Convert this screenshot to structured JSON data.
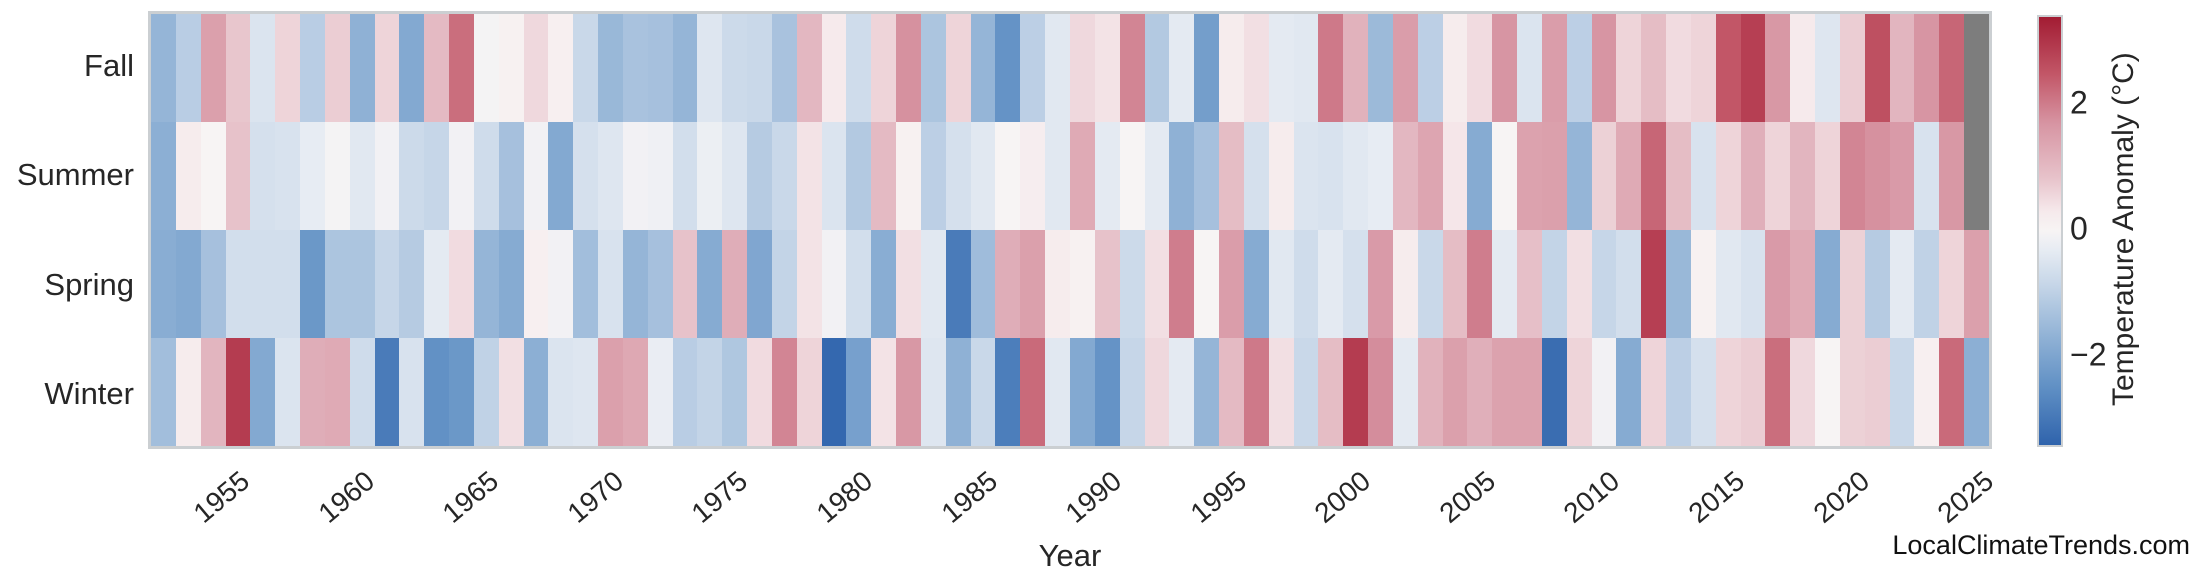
{
  "watermark": "LocalClimateTrends.com",
  "chart_data": {
    "type": "heatmap",
    "title": "",
    "xlabel": "Year",
    "ylabel": "",
    "rows": [
      "Fall",
      "Summer",
      "Spring",
      "Winter"
    ],
    "year_start": 1952,
    "year_end": 2025,
    "x_ticks": [
      "1955",
      "1960",
      "1965",
      "1970",
      "1975",
      "1980",
      "1985",
      "1990",
      "1995",
      "2000",
      "2005",
      "2010",
      "2015",
      "2020",
      "2025"
    ],
    "grid": false,
    "legend_position": "right-colorbar",
    "colorbar": {
      "label": "Temperature Anomaly (°C)",
      "ticks": [
        {
          "label": "2",
          "value": 2
        },
        {
          "label": "0",
          "value": 0
        },
        {
          "label": "−2",
          "value": -2
        }
      ],
      "vmin": -3.4,
      "vmax": 3.4
    },
    "missing_value_color": "#7d7d7d",
    "colormap_stops": [
      [
        -3.4,
        "#2f63ac"
      ],
      [
        -2.5,
        "#5f8fc4"
      ],
      [
        -1.7,
        "#8fb1d5"
      ],
      [
        -0.85,
        "#c6d6e8"
      ],
      [
        -0.3,
        "#e7ecf3"
      ],
      [
        0.0,
        "#f7f4f4"
      ],
      [
        0.3,
        "#f6eaec"
      ],
      [
        0.85,
        "#e7c2ca"
      ],
      [
        1.7,
        "#d795a3"
      ],
      [
        2.5,
        "#c25667"
      ],
      [
        3.4,
        "#a21c33"
      ]
    ],
    "series": [
      {
        "name": "Fall",
        "values": [
          -1.6,
          -1.05,
          1.5,
          0.8,
          -0.5,
          0.6,
          -1.05,
          0.7,
          -1.7,
          0.6,
          -1.9,
          1.0,
          2.2,
          -0.05,
          0.1,
          0.55,
          0.15,
          -0.8,
          -1.55,
          -1.3,
          -1.35,
          -1.6,
          -0.45,
          -0.75,
          -0.8,
          -1.3,
          1.05,
          0.3,
          -0.7,
          0.6,
          1.75,
          -1.25,
          0.6,
          -1.6,
          -2.4,
          -1.0,
          -0.4,
          0.55,
          0.4,
          1.9,
          -1.15,
          -0.35,
          -2.15,
          0.25,
          0.45,
          -0.35,
          -0.4,
          2.05,
          1.15,
          -1.5,
          1.55,
          -1.0,
          0.25,
          0.5,
          1.7,
          -0.5,
          1.55,
          -1.0,
          1.7,
          0.6,
          0.95,
          0.5,
          0.6,
          2.5,
          2.85,
          1.65,
          0.3,
          -0.45,
          0.7,
          2.6,
          1.1,
          1.7,
          2.3,
          null
        ]
      },
      {
        "name": "Summer",
        "values": [
          -1.75,
          0.25,
          0.0,
          0.85,
          -0.6,
          -0.55,
          -0.3,
          -0.05,
          -0.4,
          -0.1,
          -0.75,
          -0.85,
          -0.1,
          -0.7,
          -1.35,
          -0.1,
          -1.9,
          -0.6,
          -0.45,
          -0.1,
          -0.15,
          -0.65,
          -0.2,
          -0.45,
          -1.1,
          -0.8,
          0.4,
          -0.5,
          -1.15,
          1.0,
          0.1,
          -1.0,
          -0.6,
          -0.4,
          0.0,
          0.2,
          -0.4,
          1.3,
          -0.35,
          0.0,
          -0.35,
          -1.7,
          -1.35,
          0.95,
          -0.6,
          0.25,
          -0.5,
          -0.55,
          -0.4,
          -0.3,
          1.05,
          1.4,
          0.35,
          -1.85,
          0.0,
          1.45,
          1.5,
          -1.6,
          0.65,
          1.3,
          2.3,
          0.95,
          -0.55,
          0.6,
          1.2,
          0.6,
          1.1,
          0.6,
          1.9,
          1.75,
          1.6,
          -0.55,
          1.65,
          null
        ]
      },
      {
        "name": "Spring",
        "values": [
          -1.8,
          -1.9,
          -1.35,
          -0.65,
          -0.65,
          -0.65,
          -2.3,
          -1.25,
          -1.25,
          -0.85,
          -1.1,
          -0.35,
          0.5,
          -1.6,
          -1.85,
          0.15,
          -0.1,
          -1.4,
          -0.55,
          -1.6,
          -1.35,
          0.85,
          -1.85,
          1.25,
          -1.95,
          -0.9,
          0.4,
          -0.1,
          -0.65,
          -1.8,
          0.45,
          -0.4,
          -2.9,
          -1.45,
          1.25,
          1.5,
          0.25,
          0.1,
          0.85,
          -0.75,
          0.45,
          2.0,
          0.0,
          1.55,
          -1.85,
          -0.4,
          -0.7,
          -0.35,
          -0.6,
          1.6,
          0.25,
          -0.8,
          0.95,
          2.0,
          -0.35,
          0.9,
          -0.9,
          0.45,
          -0.85,
          -0.65,
          2.85,
          -1.55,
          0.1,
          -0.4,
          -0.55,
          1.6,
          1.3,
          -1.85,
          0.65,
          -1.1,
          -0.35,
          -0.95,
          0.6,
          1.5
        ]
      },
      {
        "name": "Winter",
        "values": [
          -1.4,
          0.25,
          1.1,
          2.9,
          -1.9,
          -0.5,
          1.25,
          1.3,
          -0.7,
          -2.9,
          -0.55,
          -2.45,
          -2.3,
          -0.95,
          0.45,
          -1.75,
          -0.5,
          -0.45,
          1.5,
          1.35,
          -0.25,
          -1.05,
          -0.9,
          -1.2,
          0.5,
          1.9,
          0.6,
          -3.3,
          -2.1,
          0.4,
          1.65,
          -0.45,
          -1.7,
          -0.8,
          -2.85,
          2.25,
          -0.4,
          -1.9,
          -2.4,
          -0.85,
          0.55,
          -0.35,
          -1.6,
          1.0,
          2.05,
          0.45,
          -0.8,
          0.95,
          2.9,
          1.8,
          -0.35,
          1.15,
          1.5,
          1.2,
          1.45,
          1.45,
          -3.2,
          0.6,
          -0.1,
          -1.85,
          0.6,
          -1.0,
          -0.6,
          0.6,
          0.7,
          2.2,
          0.55,
          0.0,
          0.65,
          0.7,
          -0.8,
          0.15,
          2.25,
          -1.75
        ]
      }
    ]
  }
}
